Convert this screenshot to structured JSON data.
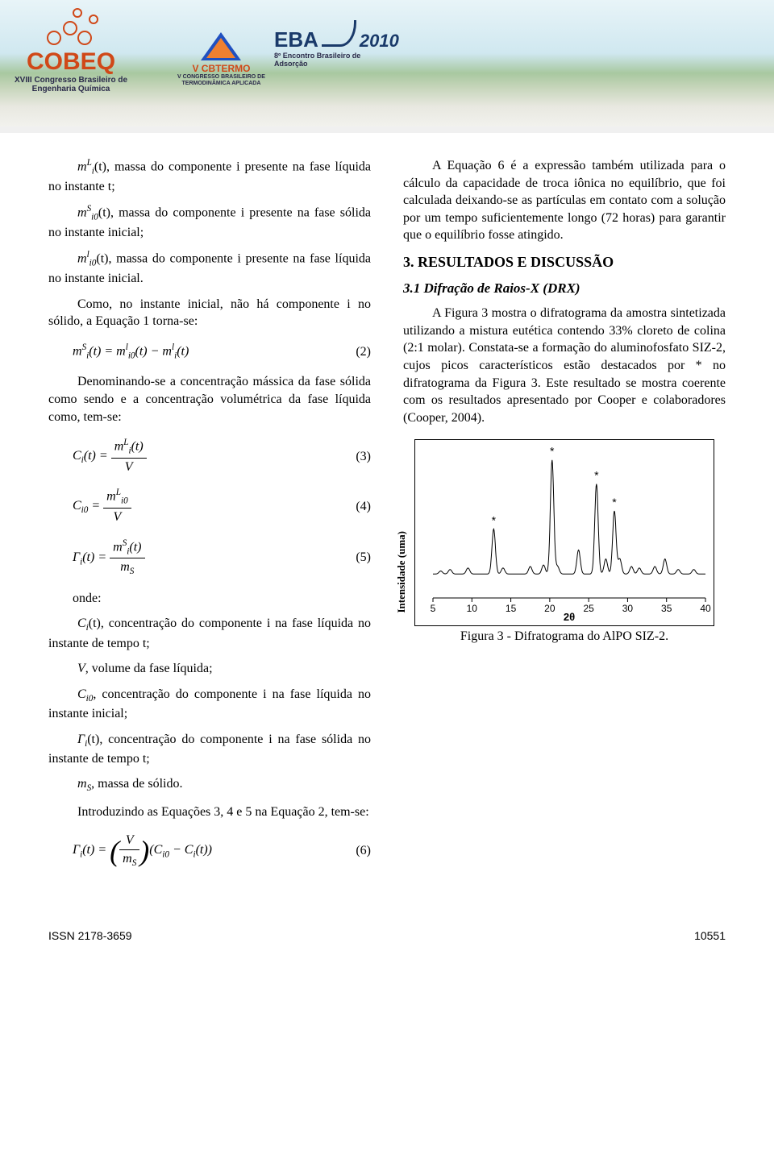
{
  "banner": {
    "cobeq": {
      "title": "COBEQ",
      "line1": "XVIII Congresso Brasileiro de",
      "line2": "Engenharia Química"
    },
    "cbtermo": {
      "title": "V CBTERMO",
      "line1": "V CONGRESSO BRASILEIRO DE",
      "line2": "TERMODINÂMICA APLICADA"
    },
    "eba": {
      "title": "EBA",
      "year": "2010",
      "line1": "8º Encontro Brasileiro de",
      "line2": "Adsorção"
    }
  },
  "left": {
    "p1_sym": "m",
    "p1_sup": "L",
    "p1_sub": "i",
    "p1": "(t), massa do componente i presente na fase líquida no instante t;",
    "p2_sym": "m",
    "p2_sup": "S",
    "p2_sub": "i0",
    "p2": "(t), massa do componente i presente na fase sólida no instante inicial;",
    "p3_sym": "m",
    "p3_sup": "l",
    "p3_sub": "i0",
    "p3": "(t), massa do componente i presente na fase líquida no instante inicial.",
    "p4": "Como, no instante inicial, não há componente i no sólido, a Equação 1 torna-se:",
    "eq2_lhs": "m",
    "eq2_lsup": "S",
    "eq2_lsub": "i",
    "eq2_mid": "(t) = m",
    "eq2_msup1": "l",
    "eq2_msub1": "i0",
    "eq2_mid2": "(t) − m",
    "eq2_msup2": "l",
    "eq2_msub2": "i",
    "eq2_tail": "(t)",
    "eq2_num": "(2)",
    "p5": "Denominando-se a concentração mássica da fase sólida como sendo e a concentração volumétrica da fase líquida como, tem-se:",
    "eq3_C": "C",
    "eq3_Csub": "i",
    "eq3_t": "(t) =",
    "eq3_num_m": "m",
    "eq3_num_sup": "L",
    "eq3_num_sub": "i",
    "eq3_num_t": "(t)",
    "eq3_den": "V",
    "eq3_num_label": "(3)",
    "eq4_C": "C",
    "eq4_Csub": "i0",
    "eq4_eq": " =",
    "eq4_num_m": "m",
    "eq4_num_sup": "L",
    "eq4_num_sub": "i0",
    "eq4_den": "V",
    "eq4_num_label": "(4)",
    "eq5_G": "Γ",
    "eq5_Gsub": "i",
    "eq5_t": "(t) =",
    "eq5_num_m": "m",
    "eq5_num_sup": "S",
    "eq5_num_sub": "i",
    "eq5_num_t": "(t)",
    "eq5_den_m": "m",
    "eq5_den_sub": "S",
    "eq5_num_label": "(5)",
    "onde": "onde:",
    "p6_sym": "C",
    "p6_sub": "i",
    "p6": "(t), concentração do componente i na fase líquida no instante de tempo t;",
    "p7_sym": "V",
    "p7": ", volume da fase líquida;",
    "p8_sym": "C",
    "p8_sub": "i0",
    "p8": ", concentração do componente i na fase líquida no instante inicial;",
    "p9_sym": "Γ",
    "p9_sub": "i",
    "p9": "(t), concentração do componente i na fase sólida no instante de tempo t;",
    "p10_sym": "m",
    "p10_sub": "S",
    "p10": ", massa de sólido.",
    "p11": "Introduzindo as Equações 3, 4 e 5 na Equação 2, tem-se:",
    "eq6_G": "Γ",
    "eq6_Gsub": "i",
    "eq6_t": "(t) =",
    "eq6_fr_num": "V",
    "eq6_fr_den_m": "m",
    "eq6_fr_den_sub": "S",
    "eq6_paren_open": "(",
    "eq6_C1": "C",
    "eq6_C1sub": "i0",
    "eq6_minus": " − ",
    "eq6_C2": "C",
    "eq6_C2sub": "i",
    "eq6_C2t": "(t)",
    "eq6_paren_close": ")",
    "eq6_num_label": "(6)"
  },
  "right": {
    "p1": "A Equação 6 é a expressão também utilizada para o cálculo da capacidade de troca iônica no equilíbrio, que foi calculada deixando-se as partículas em contato com a solução por um tempo suficientemente longo (72 horas) para garantir que o equilíbrio fosse atingido.",
    "h2": "3. RESULTADOS E DISCUSSÃO",
    "h3": "3.1 Difração de Raios-X (DRX)",
    "p2": "A Figura 3 mostra o difratograma da amostra sintetizada utilizando a mistura eutética contendo 33% cloreto de colina (2:1 molar). Constata-se a formação do aluminofosfato SIZ-2, cujos picos característicos estão destacados por * no difratograma da Figura 3. Este resultado se mostra coerente com os resultados apresentado por Cooper e colaboradores (Cooper, 2004).",
    "chart": {
      "ylabel": "Intensidade (uma)",
      "xlabel": "2θ",
      "xmin": 5,
      "xmax": 40,
      "xtick_step": 5,
      "xticks": [
        5,
        10,
        15,
        20,
        25,
        30,
        35,
        40
      ],
      "baseline_y": 0.85,
      "line_color": "#000000",
      "line_width": 1,
      "background_color": "#ffffff",
      "tick_fontsize": 12,
      "label_fontsize": 13,
      "star": "*",
      "peaks": [
        {
          "x": 6.0,
          "h": 0.02
        },
        {
          "x": 7.2,
          "h": 0.03
        },
        {
          "x": 9.5,
          "h": 0.04
        },
        {
          "x": 12.8,
          "h": 0.3,
          "star": true
        },
        {
          "x": 14.0,
          "h": 0.04
        },
        {
          "x": 17.5,
          "h": 0.05
        },
        {
          "x": 19.2,
          "h": 0.06
        },
        {
          "x": 20.3,
          "h": 0.76,
          "star": true
        },
        {
          "x": 21.0,
          "h": 0.05
        },
        {
          "x": 23.7,
          "h": 0.16
        },
        {
          "x": 26.0,
          "h": 0.6,
          "star": true
        },
        {
          "x": 27.2,
          "h": 0.1
        },
        {
          "x": 28.3,
          "h": 0.42,
          "star": true
        },
        {
          "x": 29.0,
          "h": 0.1
        },
        {
          "x": 30.5,
          "h": 0.05
        },
        {
          "x": 31.5,
          "h": 0.04
        },
        {
          "x": 33.5,
          "h": 0.05
        },
        {
          "x": 34.8,
          "h": 0.1
        },
        {
          "x": 36.5,
          "h": 0.03
        },
        {
          "x": 38.5,
          "h": 0.03
        }
      ]
    },
    "caption": "Figura 3 - Difratograma do AlPO SIZ-2."
  },
  "footer": {
    "issn": "ISSN 2178-3659",
    "page": "10551"
  }
}
